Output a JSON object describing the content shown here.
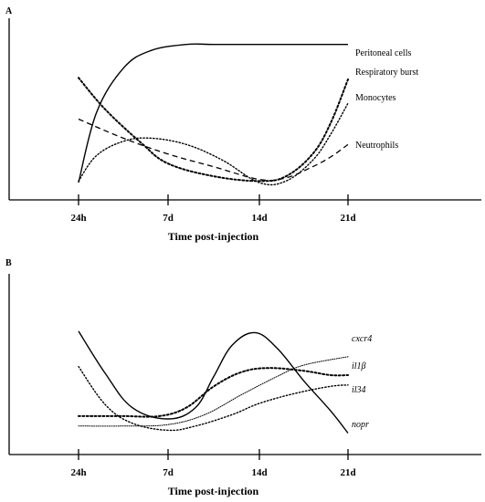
{
  "chart_data": [
    {
      "type": "line",
      "panel_label": "A",
      "xlabel": "Time post-injection",
      "ylabel": "",
      "x_ticks": [
        "24h",
        "7d",
        "14d",
        "21d"
      ],
      "xlim": [
        0,
        4.4
      ],
      "ylim": [
        0,
        1
      ],
      "y_ticks_shown": false,
      "grid": false,
      "legend": "inline-right",
      "series": [
        {
          "name": "Peritoneal cells",
          "style": "solid",
          "points": [
            [
              0,
              0.08
            ],
            [
              0.2,
              0.52
            ],
            [
              0.5,
              0.8
            ],
            [
              0.8,
              0.91
            ],
            [
              1.2,
              0.95
            ],
            [
              1.5,
              0.95
            ],
            [
              2,
              0.95
            ],
            [
              3,
              0.95
            ]
          ]
        },
        {
          "name": "Respiratory burst",
          "style": "dotted-heavy",
          "points": [
            [
              0,
              0.74
            ],
            [
              0.3,
              0.54
            ],
            [
              0.7,
              0.33
            ],
            [
              1,
              0.2
            ],
            [
              1.5,
              0.12
            ],
            [
              2,
              0.09
            ],
            [
              2.3,
              0.12
            ],
            [
              2.6,
              0.26
            ],
            [
              2.8,
              0.45
            ],
            [
              3,
              0.73
            ]
          ]
        },
        {
          "name": "Monocytes",
          "style": "dotted",
          "points": [
            [
              0,
              0.09
            ],
            [
              0.2,
              0.25
            ],
            [
              0.5,
              0.34
            ],
            [
              0.8,
              0.36
            ],
            [
              1.2,
              0.32
            ],
            [
              1.6,
              0.22
            ],
            [
              2,
              0.08
            ],
            [
              2.3,
              0.09
            ],
            [
              2.6,
              0.22
            ],
            [
              2.8,
              0.38
            ],
            [
              3,
              0.58
            ]
          ]
        },
        {
          "name": "Neutrophils",
          "style": "dashed",
          "points": [
            [
              0,
              0.48
            ],
            [
              0.5,
              0.36
            ],
            [
              1,
              0.26
            ],
            [
              1.5,
              0.18
            ],
            [
              2,
              0.1
            ],
            [
              2.3,
              0.11
            ],
            [
              2.6,
              0.18
            ],
            [
              2.8,
              0.24
            ],
            [
              3,
              0.32
            ]
          ]
        }
      ],
      "label_positions": [
        {
          "series": "Peritoneal cells",
          "text": "Peritoneal cells"
        },
        {
          "series": "Respiratory burst",
          "text": "Respiratory burst"
        },
        {
          "series": "Monocytes",
          "text": "Monocytes"
        },
        {
          "series": "Neutrophils",
          "text": "Neutrophils"
        }
      ]
    },
    {
      "type": "line",
      "panel_label": "B",
      "xlabel": "Time post-injection",
      "ylabel": "",
      "x_ticks": [
        "24h",
        "7d",
        "14d",
        "21d"
      ],
      "xlim": [
        0,
        4.4
      ],
      "ylim": [
        0,
        1
      ],
      "y_ticks_shown": false,
      "grid": false,
      "legend": "inline-right",
      "series": [
        {
          "name": "cxcr4",
          "style": "dotted-thin",
          "points": [
            [
              0,
              0.15
            ],
            [
              0.5,
              0.15
            ],
            [
              1,
              0.16
            ],
            [
              1.4,
              0.23
            ],
            [
              1.8,
              0.37
            ],
            [
              2.2,
              0.5
            ],
            [
              2.5,
              0.58
            ],
            [
              3,
              0.64
            ]
          ]
        },
        {
          "name": "il1β",
          "style": "dotted-heavy",
          "points": [
            [
              0,
              0.22
            ],
            [
              0.5,
              0.22
            ],
            [
              0.9,
              0.22
            ],
            [
              1.2,
              0.28
            ],
            [
              1.5,
              0.43
            ],
            [
              1.8,
              0.53
            ],
            [
              2.1,
              0.56
            ],
            [
              2.5,
              0.54
            ],
            [
              2.8,
              0.51
            ],
            [
              3,
              0.51
            ]
          ]
        },
        {
          "name": "il34",
          "style": "dotted",
          "points": [
            [
              0,
              0.57
            ],
            [
              0.3,
              0.3
            ],
            [
              0.6,
              0.17
            ],
            [
              1,
              0.12
            ],
            [
              1.3,
              0.15
            ],
            [
              1.7,
              0.23
            ],
            [
              2,
              0.31
            ],
            [
              2.4,
              0.38
            ],
            [
              2.8,
              0.43
            ],
            [
              3,
              0.44
            ]
          ]
        },
        {
          "name": "nopr",
          "style": "solid",
          "points": [
            [
              0,
              0.82
            ],
            [
              0.3,
              0.52
            ],
            [
              0.6,
              0.28
            ],
            [
              1,
              0.2
            ],
            [
              1.3,
              0.28
            ],
            [
              1.5,
              0.5
            ],
            [
              1.7,
              0.72
            ],
            [
              1.95,
              0.81
            ],
            [
              2.2,
              0.7
            ],
            [
              2.5,
              0.47
            ],
            [
              2.8,
              0.26
            ],
            [
              3,
              0.1
            ]
          ]
        }
      ],
      "label_positions": [
        {
          "series": "cxcr4",
          "text": "cxcr4"
        },
        {
          "series": "il1β",
          "text": "il1β"
        },
        {
          "series": "il34",
          "text": "il34"
        },
        {
          "series": "nopr",
          "text": "nopr"
        }
      ]
    }
  ]
}
